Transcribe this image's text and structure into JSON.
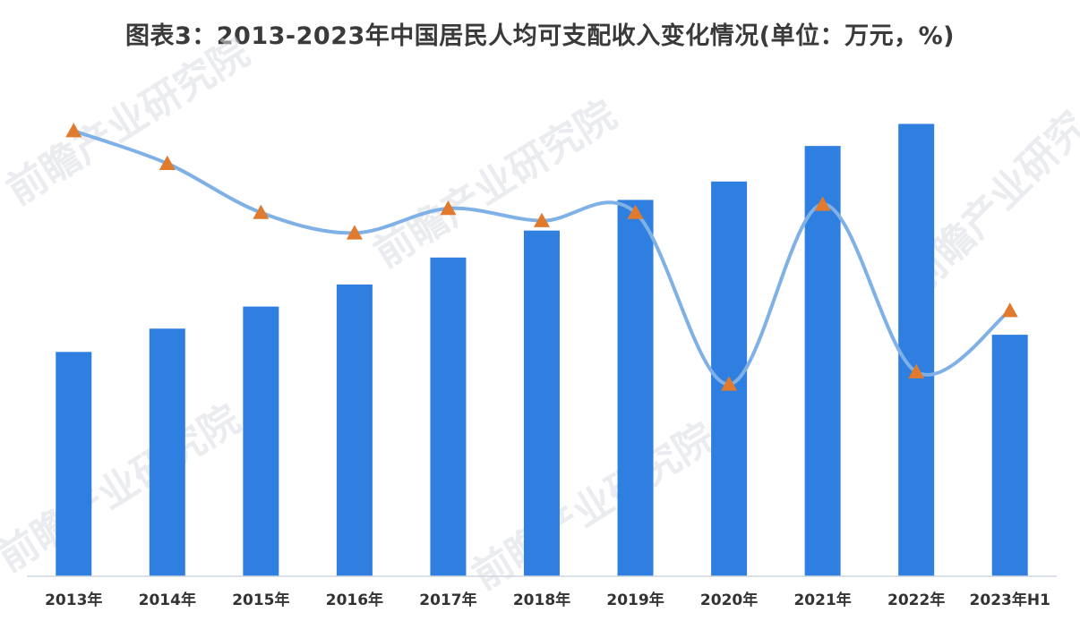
{
  "title": "图表3：2013-2023年中国居民人均可支配收入变化情况(单位：万元，%)",
  "colors": {
    "bar": "#2f7fe0",
    "line": "#7fb0e6",
    "marker": "#e07a2e",
    "axis": "#cfd6de"
  },
  "chart_data": {
    "type": "bar",
    "title": "图表3：2013-2023年中国居民人均可支配收入变化情况(单位：万元，%)",
    "categories": [
      "2013年",
      "2014年",
      "2015年",
      "2016年",
      "2017年",
      "2018年",
      "2019年",
      "2020年",
      "2021年",
      "2022年",
      "2023年H1"
    ],
    "series": [
      {
        "type": "bar",
        "axis": "left",
        "values": [
          1.83,
          2.02,
          2.2,
          2.38,
          2.6,
          2.82,
          3.07,
          3.22,
          3.51,
          3.69,
          1.97
        ]
      },
      {
        "type": "line",
        "axis": "right",
        "values": [
          10.9,
          10.1,
          8.9,
          8.4,
          9.0,
          8.7,
          8.9,
          4.7,
          9.1,
          5.0,
          6.5
        ]
      }
    ],
    "left_ylim": [
      0,
      4.0
    ],
    "right_ylim": [
      0,
      12
    ],
    "grid": false,
    "legend": "none"
  }
}
